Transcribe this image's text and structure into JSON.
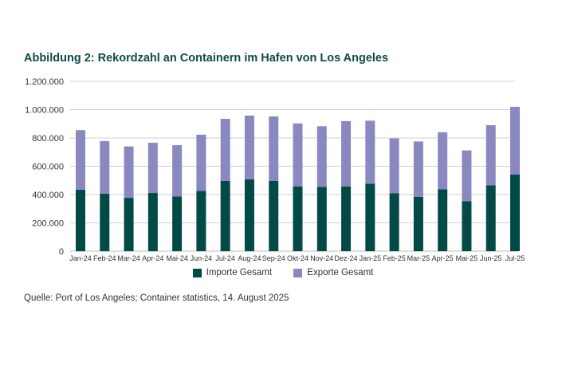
{
  "chart_data": {
    "type": "bar",
    "stacked": true,
    "title": "Abbildung 2: Rekordzahl an Containern im Hafen von Los Angeles",
    "categories": [
      "Jan-24",
      "Feb-24",
      "Mar-24",
      "Apr-24",
      "Mai-24",
      "Jun-24",
      "Jul-24",
      "Aug-24",
      "Sep-24",
      "Okt-24",
      "Nov-24",
      "Dez-24",
      "Jan-25",
      "Feb-25",
      "Mar-25",
      "Apr-25",
      "Mai-25",
      "Jun-25",
      "Jul-25"
    ],
    "series": [
      {
        "name": "Importe Gesamt",
        "color": "#024a46",
        "values": [
          434000,
          406000,
          377000,
          411000,
          386000,
          426000,
          496000,
          507000,
          496000,
          458000,
          455000,
          458000,
          477000,
          410000,
          384000,
          437000,
          352000,
          465000,
          541000
        ]
      },
      {
        "name": "Exporte Gesamt",
        "color": "#8a88c0",
        "values": [
          421000,
          372000,
          363000,
          355000,
          363000,
          397000,
          439000,
          451000,
          456000,
          445000,
          428000,
          461000,
          445000,
          387000,
          391000,
          403000,
          360000,
          425000,
          479000
        ]
      }
    ],
    "ylim": [
      0,
      1200000
    ],
    "yticks": [
      "0",
      "200.000",
      "400.000",
      "600.000",
      "800.000",
      "1.000.000",
      "1.200.000"
    ],
    "ytick_values": [
      0,
      200000,
      400000,
      600000,
      800000,
      1000000,
      1200000
    ],
    "grid": true,
    "legend": "bottom",
    "xlabel": "",
    "ylabel": ""
  },
  "source": "Quelle: Port of Los Angeles; Container statistics, 14. August 2025"
}
